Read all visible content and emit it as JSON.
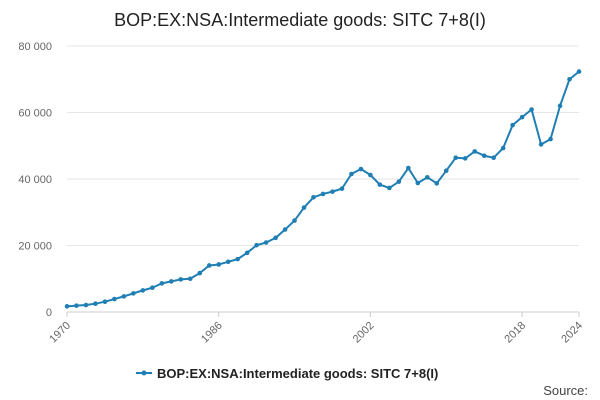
{
  "chart_data": {
    "type": "line",
    "title": "BOP:EX:NSA:Intermediate goods: SITC 7+8(I)",
    "xlabel": "",
    "ylabel": "",
    "xlim": [
      1970,
      2024
    ],
    "ylim": [
      0,
      80000
    ],
    "y_ticks": [
      0,
      20000,
      40000,
      60000,
      80000
    ],
    "y_tick_labels": [
      "0",
      "20 000",
      "40 000",
      "60 000",
      "80 000"
    ],
    "x_ticks": [
      1970,
      1986,
      2002,
      2018,
      2024
    ],
    "x_tick_labels": [
      "1970",
      "1986",
      "2002",
      "2018",
      "2024"
    ],
    "grid": "horizontal",
    "legend": "bottom",
    "source_label": "Source:",
    "series": [
      {
        "name": "BOP:EX:NSA:Intermediate goods: SITC 7+8(I)",
        "color": "#1f7fb4",
        "x": [
          1970,
          1971,
          1972,
          1973,
          1974,
          1975,
          1976,
          1977,
          1978,
          1979,
          1980,
          1981,
          1982,
          1983,
          1984,
          1985,
          1986,
          1987,
          1988,
          1989,
          1990,
          1991,
          1992,
          1993,
          1994,
          1995,
          1996,
          1997,
          1998,
          1999,
          2000,
          2001,
          2002,
          2003,
          2004,
          2005,
          2006,
          2007,
          2008,
          2009,
          2010,
          2011,
          2012,
          2013,
          2014,
          2015,
          2016,
          2017,
          2018,
          2019,
          2020,
          2021,
          2022,
          2023,
          2024
        ],
        "values": [
          1700,
          1900,
          2100,
          2500,
          3100,
          3900,
          4700,
          5600,
          6500,
          7300,
          8600,
          9200,
          9800,
          10000,
          11700,
          14000,
          14300,
          15100,
          15900,
          17800,
          20100,
          20900,
          22300,
          24800,
          27500,
          31400,
          34500,
          35500,
          36200,
          37100,
          41500,
          43000,
          41200,
          38300,
          37300,
          39200,
          43300,
          38800,
          40500,
          38700,
          42500,
          46400,
          46200,
          48300,
          47000,
          46400,
          49300,
          56200,
          58600,
          60900,
          50400,
          52000,
          62000,
          70000,
          72300
        ]
      }
    ]
  }
}
